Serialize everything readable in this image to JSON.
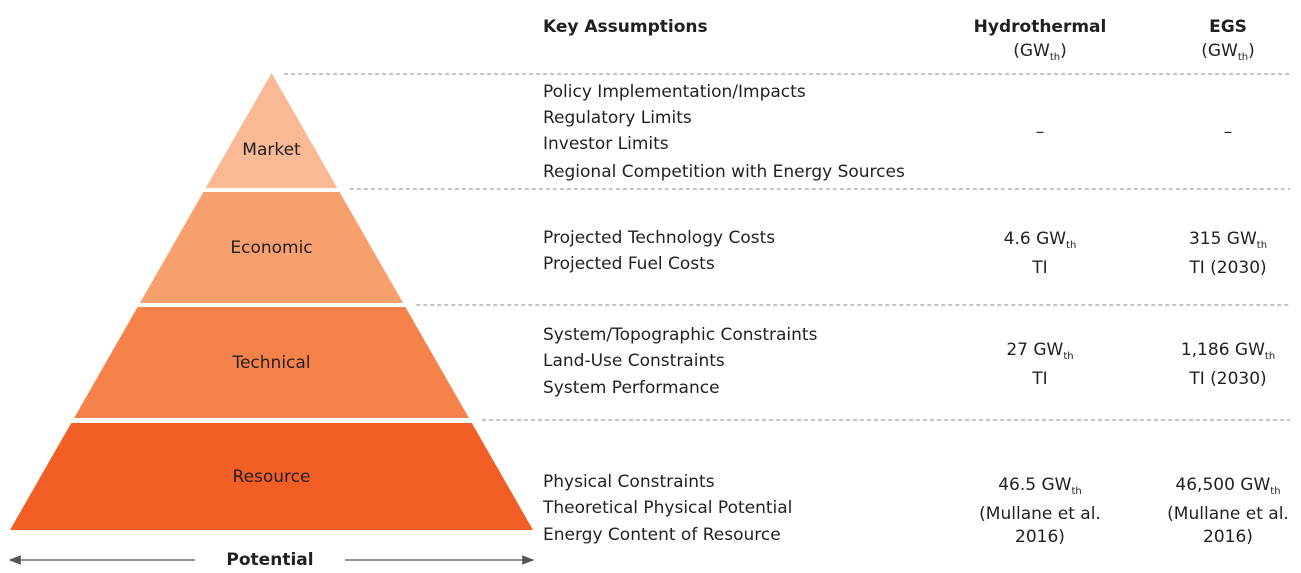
{
  "header": {
    "assumptions": "Key Assumptions",
    "columns": [
      {
        "name": "Hydrothermal",
        "unit": {
          "prefix": "(GW",
          "sub": "th",
          "suffix": ")"
        }
      },
      {
        "name": "EGS",
        "unit": {
          "prefix": "(GW",
          "sub": "th",
          "suffix": ")"
        }
      }
    ]
  },
  "levels": [
    {
      "label": "Market",
      "assumptions": [
        "Policy Implementation/Impacts",
        "Regulatory Limits",
        "Investor Limits",
        "Regional Competition with Energy Sources"
      ],
      "values": [
        {
          "text": "–"
        },
        {
          "text": "–"
        }
      ]
    },
    {
      "label": "Economic",
      "assumptions": [
        "Projected Technology Costs",
        "Projected Fuel Costs"
      ],
      "values": [
        {
          "text": "4.6 GW",
          "sub": "th",
          "note": [
            "TI"
          ]
        },
        {
          "text": "315 GW",
          "sub": "th",
          "note": [
            "TI (2030)"
          ]
        }
      ]
    },
    {
      "label": "Technical",
      "assumptions": [
        "System/Topographic Constraints",
        "Land-Use Constraints",
        "System Performance"
      ],
      "values": [
        {
          "text": "27 GW",
          "sub": "th",
          "note": [
            "TI"
          ]
        },
        {
          "text": "1,186 GW",
          "sub": "th",
          "note": [
            "TI (2030)"
          ]
        }
      ]
    },
    {
      "label": "Resource",
      "assumptions": [
        "Physical Constraints",
        "Theoretical Physical Potential",
        "Energy Content of Resource"
      ],
      "values": [
        {
          "text": "46.5 GW",
          "sub": "th",
          "note": [
            "(Mullane et al.",
            "2016)"
          ]
        },
        {
          "text": "46,500 GW",
          "sub": "th",
          "note": [
            "(Mullane et al.",
            "2016)"
          ]
        }
      ]
    }
  ],
  "axis": {
    "label": "Potential"
  }
}
